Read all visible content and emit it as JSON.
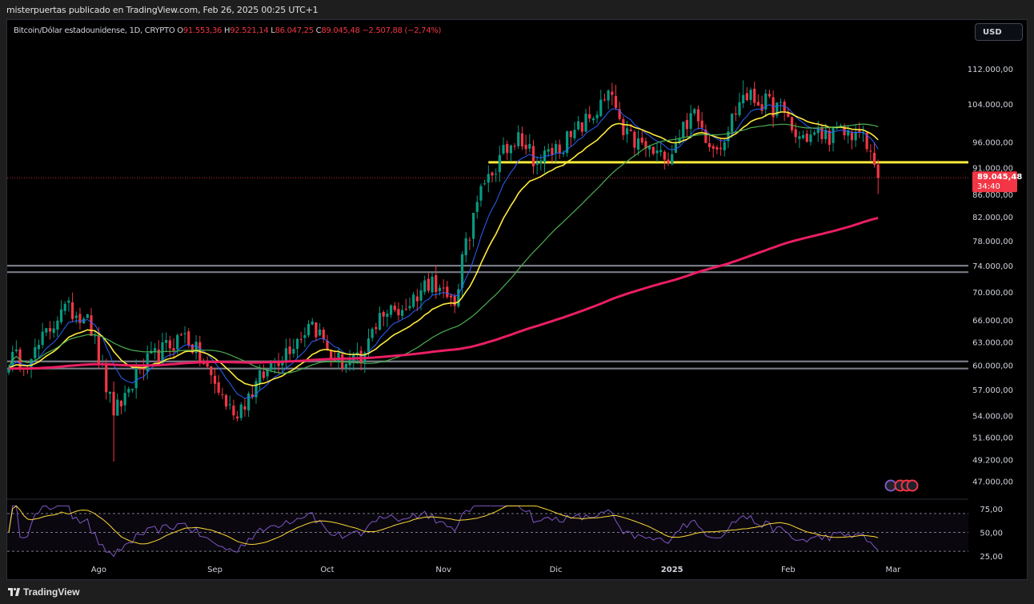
{
  "header": {
    "publish_line": "misterpuertas publicado en TradingView.com, Feb 26, 2025 00:25 UTC+1"
  },
  "legend": {
    "symbol": "Bitcoin/Dólar estadounidense, 1D, CRYPTO",
    "open_label": "O",
    "open_value": "91.553,36",
    "high_label": "H",
    "high_value": "92.521,14",
    "low_label": "L",
    "low_value": "86.047,25",
    "close_label": "C",
    "close_value": "89.045,48",
    "change": "−2.507,88 (−2,74%)"
  },
  "currency_button": "USD",
  "price_badge": {
    "price": "89.045,48",
    "countdown": "34:40",
    "color": "#f23645"
  },
  "footer": {
    "brand": "TradingView"
  },
  "colors": {
    "up": "#089981",
    "down": "#f23645",
    "ema_fast": "#2962ff",
    "ema_yellow": "#ffeb3b",
    "sma_green": "#4caf50",
    "sma_200": "#e91e63",
    "level_yellow": "#ffeb3b",
    "level_gray": "#787b86",
    "rsi": "#7e57c2",
    "rsi_ma": "#fdd835"
  },
  "chart_data": {
    "type": "candlestick",
    "title": "Bitcoin/Dólar estadounidense, 1D, CRYPTO",
    "x_tick_labels": [
      "Ago",
      "Sep",
      "Oct",
      "Nov",
      "Dic",
      "2025",
      "Feb",
      "Mar"
    ],
    "price_axis_labels": [
      "112.000,00",
      "104.000,00",
      "96.000,00",
      "91.000,00",
      "86.000,00",
      "82.000,00",
      "78.000,00",
      "74.000,00",
      "70.000,00",
      "66.000,00",
      "63.000,00",
      "60.000,00",
      "57.000,00",
      "54.000,00",
      "51.600,00",
      "49.200,00",
      "47.000,00"
    ],
    "price_axis_values": [
      112000,
      104000,
      96000,
      91000,
      86000,
      82000,
      78000,
      74000,
      70000,
      66000,
      63000,
      60000,
      57000,
      54000,
      51600,
      49200,
      47000
    ],
    "scale": "log",
    "horizontal_levels": [
      {
        "price": 92000,
        "color": "#ffeb3b",
        "from_date": "2024-11-13"
      },
      {
        "price": 74000,
        "color": "#787b86"
      },
      {
        "price": 73000,
        "color": "#787b86"
      },
      {
        "price": 60500,
        "color": "#787b86"
      },
      {
        "price": 59600,
        "color": "#787b86"
      }
    ],
    "last_close": 89045.48,
    "daily_close_anchors": [
      {
        "date": "2024-07-14",
        "close": 60800
      },
      {
        "date": "2024-07-22",
        "close": 67500
      },
      {
        "date": "2024-07-29",
        "close": 66800
      },
      {
        "date": "2024-08-05",
        "close": 54000
      },
      {
        "date": "2024-08-12",
        "close": 59500
      },
      {
        "date": "2024-08-24",
        "close": 64200
      },
      {
        "date": "2024-09-06",
        "close": 54000
      },
      {
        "date": "2024-09-15",
        "close": 59500
      },
      {
        "date": "2024-09-27",
        "close": 65800
      },
      {
        "date": "2024-10-03",
        "close": 60600
      },
      {
        "date": "2024-10-10",
        "close": 60300
      },
      {
        "date": "2024-10-15",
        "close": 67000
      },
      {
        "date": "2024-10-21",
        "close": 67400
      },
      {
        "date": "2024-10-29",
        "close": 72300
      },
      {
        "date": "2024-11-04",
        "close": 68000
      },
      {
        "date": "2024-11-06",
        "close": 75800
      },
      {
        "date": "2024-11-12",
        "close": 88000
      },
      {
        "date": "2024-11-21",
        "close": 98000
      },
      {
        "date": "2024-11-26",
        "close": 92000
      },
      {
        "date": "2024-12-05",
        "close": 97000
      },
      {
        "date": "2024-12-16",
        "close": 106000
      },
      {
        "date": "2024-12-19",
        "close": 97400
      },
      {
        "date": "2024-12-30",
        "close": 92500
      },
      {
        "date": "2025-01-06",
        "close": 102000
      },
      {
        "date": "2025-01-13",
        "close": 94500
      },
      {
        "date": "2025-01-20",
        "close": 106000
      },
      {
        "date": "2025-01-31",
        "close": 102400
      },
      {
        "date": "2025-02-03",
        "close": 97000
      },
      {
        "date": "2025-02-20",
        "close": 98000
      },
      {
        "date": "2025-02-24",
        "close": 91500
      },
      {
        "date": "2025-02-25",
        "close": 89045
      }
    ],
    "rsi_axis_labels": [
      "75,00",
      "50,00",
      "25,00"
    ],
    "rsi_axis_values": [
      75,
      50,
      25
    ],
    "rsi_band": [
      30,
      70
    ]
  }
}
